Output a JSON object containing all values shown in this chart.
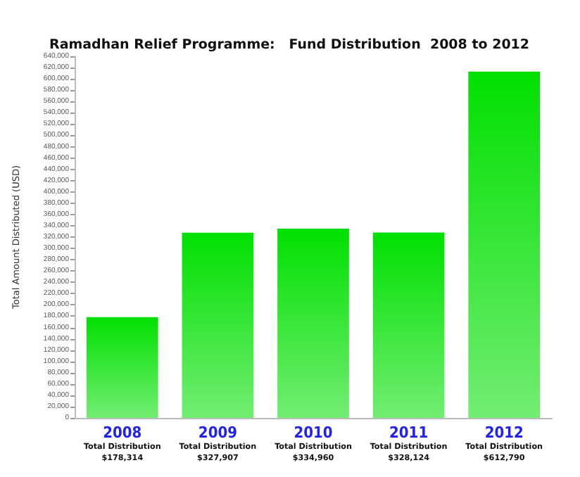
{
  "chart_data": {
    "type": "bar",
    "title": "Ramadhan Relief Programme:   Fund Distribution  2008 to 2012",
    "ylabel": "Total Amount Distributed (USD)",
    "categories": [
      "2008",
      "2009",
      "2010",
      "2011",
      "2012"
    ],
    "values": [
      178314,
      327907,
      334960,
      328124,
      612790
    ],
    "value_labels": [
      "Total Distribution\n$178,314",
      "Total Distribution\n$327,907",
      "Total Distribution\n$334,960",
      "Total Distribution\n$328,124",
      "Total Distribution\n$612,790"
    ],
    "color": "#00e000",
    "ylim": [
      0,
      640000
    ],
    "yticks": [
      {
        "value": 0,
        "label": "0"
      },
      {
        "value": 20000,
        "label": "20,000"
      },
      {
        "value": 40000,
        "label": "40,000"
      },
      {
        "value": 60000,
        "label": "60,000"
      },
      {
        "value": 80000,
        "label": "80,000"
      },
      {
        "value": 100000,
        "label": "100,000"
      },
      {
        "value": 120000,
        "label": "120,000"
      },
      {
        "value": 140000,
        "label": "140,000"
      },
      {
        "value": 160000,
        "label": "160,000"
      },
      {
        "value": 180000,
        "label": "180,000"
      },
      {
        "value": 200000,
        "label": "200,000"
      },
      {
        "value": 220000,
        "label": "220,000"
      },
      {
        "value": 240000,
        "label": "240,000"
      },
      {
        "value": 260000,
        "label": "260,000"
      },
      {
        "value": 280000,
        "label": "280,000"
      },
      {
        "value": 300000,
        "label": "300,000"
      },
      {
        "value": 320000,
        "label": "320,000"
      },
      {
        "value": 340000,
        "label": "340,000"
      },
      {
        "value": 360000,
        "label": "360,000"
      },
      {
        "value": 380000,
        "label": "380,000"
      },
      {
        "value": 400000,
        "label": "400,000"
      },
      {
        "value": 420000,
        "label": "420,000"
      },
      {
        "value": 440000,
        "label": "440,000"
      },
      {
        "value": 460000,
        "label": "460,000"
      },
      {
        "value": 480000,
        "label": "480,000"
      },
      {
        "value": 500000,
        "label": "500,000"
      },
      {
        "value": 520000,
        "label": "520,000"
      },
      {
        "value": 540000,
        "label": "540,000"
      },
      {
        "value": 560000,
        "label": "560,000"
      },
      {
        "value": 580000,
        "label": "580,000"
      },
      {
        "value": 600000,
        "label": "600,000"
      },
      {
        "value": 620000,
        "label": "620,000"
      },
      {
        "value": 640000,
        "label": "640,000"
      }
    ],
    "grid": false
  }
}
